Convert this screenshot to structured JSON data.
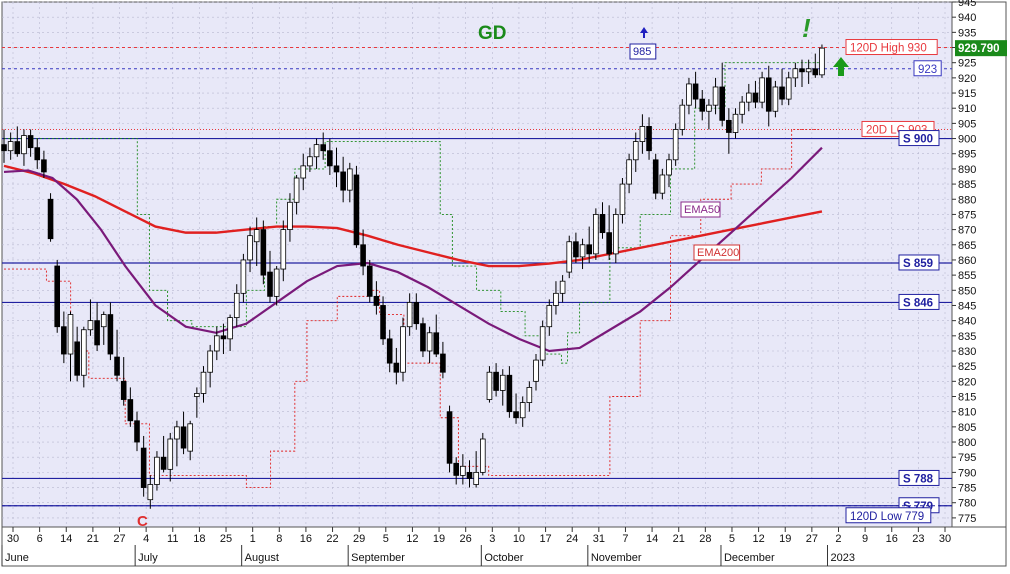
{
  "chart_data": {
    "type": "candlestick",
    "y_axis": {
      "min": 772,
      "max": 945,
      "tick_labels": [
        "945",
        "940",
        "935",
        "930",
        "925",
        "920",
        "915",
        "910",
        "905",
        "900",
        "895",
        "890",
        "885",
        "880",
        "875",
        "870",
        "865",
        "860",
        "855",
        "850",
        "845",
        "840",
        "835",
        "830",
        "825",
        "820",
        "815",
        "810",
        "805",
        "800",
        "795",
        "790",
        "785",
        "780",
        "775"
      ],
      "position": "right",
      "last_price": "929.790"
    },
    "x_axis": {
      "day_labels": [
        "30",
        "6",
        "14",
        "21",
        "27",
        "4",
        "11",
        "18",
        "25",
        "1",
        "8",
        "16",
        "22",
        "29",
        "5",
        "12",
        "19",
        "26",
        "3",
        "10",
        "17",
        "24",
        "31",
        "7",
        "14",
        "21",
        "28",
        "5",
        "12",
        "19",
        "27",
        "2",
        "9",
        "16",
        "23",
        "30"
      ],
      "month_labels": [
        "June",
        "July",
        "August",
        "September",
        "October",
        "November",
        "December",
        "2023"
      ]
    },
    "grid": true,
    "candles": [
      [
        898,
        903,
        892,
        896
      ],
      [
        896,
        902,
        893,
        899
      ],
      [
        899,
        904,
        894,
        895
      ],
      [
        895,
        903,
        891,
        901
      ],
      [
        901,
        903,
        894,
        897
      ],
      [
        897,
        900,
        890,
        893
      ],
      [
        893,
        896,
        887,
        889
      ],
      [
        880,
        882,
        866,
        867
      ],
      [
        858,
        860,
        836,
        838
      ],
      [
        838,
        843,
        826,
        829
      ],
      [
        829,
        843,
        820,
        842
      ],
      [
        833,
        838,
        820,
        822
      ],
      [
        822,
        838,
        818,
        837
      ],
      [
        837,
        847,
        835,
        840
      ],
      [
        840,
        846,
        830,
        832
      ],
      [
        838,
        843,
        832,
        842
      ],
      [
        842,
        846,
        827,
        829
      ],
      [
        828,
        837,
        820,
        822
      ],
      [
        820,
        828,
        812,
        814
      ],
      [
        814,
        818,
        805,
        807
      ],
      [
        807,
        810,
        797,
        800
      ],
      [
        798,
        802,
        782,
        785
      ],
      [
        781,
        789,
        778,
        786
      ],
      [
        786,
        797,
        784,
        795
      ],
      [
        795,
        802,
        790,
        791
      ],
      [
        791,
        803,
        787,
        801
      ],
      [
        801,
        807,
        792,
        805
      ],
      [
        805,
        810,
        796,
        798
      ],
      [
        797,
        807,
        794,
        806
      ],
      [
        815,
        818,
        808,
        816
      ],
      [
        816,
        825,
        813,
        823
      ],
      [
        823,
        832,
        818,
        830
      ],
      [
        830,
        838,
        827,
        835
      ],
      [
        835,
        839,
        829,
        834
      ],
      [
        834,
        842,
        830,
        841
      ],
      [
        841,
        852,
        838,
        849
      ],
      [
        849,
        862,
        846,
        860
      ],
      [
        860,
        871,
        856,
        868
      ],
      [
        866,
        874,
        858,
        870
      ],
      [
        870,
        873,
        852,
        855
      ],
      [
        856,
        863,
        846,
        848
      ],
      [
        848,
        858,
        845,
        857
      ],
      [
        857,
        873,
        853,
        870
      ],
      [
        870,
        882,
        866,
        879
      ],
      [
        879,
        888,
        875,
        887
      ],
      [
        887,
        895,
        883,
        891
      ],
      [
        891,
        897,
        889,
        894
      ],
      [
        894,
        900,
        890,
        898
      ],
      [
        898,
        902,
        893,
        896
      ],
      [
        896,
        900,
        888,
        891
      ],
      [
        891,
        897,
        884,
        889
      ],
      [
        889,
        894,
        879,
        883
      ],
      [
        883,
        892,
        879,
        890
      ],
      [
        888,
        891,
        864,
        865
      ],
      [
        865,
        870,
        855,
        858
      ],
      [
        858,
        860,
        846,
        848
      ],
      [
        848,
        853,
        842,
        845
      ],
      [
        845,
        848,
        832,
        834
      ],
      [
        834,
        837,
        823,
        826
      ],
      [
        826,
        831,
        819,
        823
      ],
      [
        823,
        841,
        820,
        838
      ],
      [
        838,
        849,
        835,
        846
      ],
      [
        846,
        849,
        837,
        839
      ],
      [
        839,
        841,
        828,
        830
      ],
      [
        830,
        838,
        826,
        836
      ],
      [
        836,
        842,
        828,
        829
      ],
      [
        829,
        833,
        821,
        823
      ],
      [
        810,
        812,
        790,
        793
      ],
      [
        793,
        795,
        786,
        789
      ],
      [
        789,
        796,
        786,
        792
      ],
      [
        790,
        794,
        785,
        788
      ],
      [
        786,
        797,
        785,
        790
      ],
      [
        790,
        803,
        789,
        801
      ],
      [
        814,
        825,
        813,
        823
      ],
      [
        823,
        826,
        815,
        817
      ],
      [
        817,
        824,
        812,
        822
      ],
      [
        822,
        825,
        808,
        810
      ],
      [
        810,
        816,
        806,
        808
      ],
      [
        808,
        815,
        805,
        813
      ],
      [
        813,
        820,
        810,
        818
      ],
      [
        820,
        829,
        817,
        827
      ],
      [
        827,
        840,
        825,
        838
      ],
      [
        838,
        847,
        835,
        845
      ],
      [
        845,
        853,
        842,
        849
      ],
      [
        849,
        855,
        846,
        853
      ],
      [
        856,
        868,
        854,
        866
      ],
      [
        866,
        869,
        859,
        861
      ],
      [
        861,
        867,
        857,
        865
      ],
      [
        865,
        871,
        859,
        862
      ],
      [
        862,
        877,
        860,
        875
      ],
      [
        875,
        879,
        867,
        869
      ],
      [
        869,
        878,
        860,
        862
      ],
      [
        862,
        877,
        859,
        875
      ],
      [
        875,
        887,
        872,
        885
      ],
      [
        885,
        895,
        882,
        893
      ],
      [
        893,
        902,
        889,
        899
      ],
      [
        899,
        908,
        895,
        904
      ],
      [
        904,
        907,
        893,
        896
      ],
      [
        893,
        895,
        880,
        882
      ],
      [
        882,
        890,
        880,
        888
      ],
      [
        888,
        895,
        884,
        893
      ],
      [
        893,
        905,
        891,
        903
      ],
      [
        903,
        913,
        901,
        911
      ],
      [
        911,
        920,
        908,
        918
      ],
      [
        918,
        922,
        910,
        913
      ],
      [
        913,
        916,
        906,
        909
      ],
      [
        909,
        913,
        903,
        911
      ],
      [
        911,
        920,
        908,
        917
      ],
      [
        917,
        925,
        904,
        906
      ],
      [
        906,
        910,
        895,
        902
      ],
      [
        902,
        910,
        900,
        908
      ],
      [
        908,
        914,
        905,
        912
      ],
      [
        912,
        918,
        909,
        915
      ],
      [
        915,
        919,
        910,
        912
      ],
      [
        912,
        922,
        910,
        920
      ],
      [
        920,
        924,
        904,
        909
      ],
      [
        909,
        919,
        907,
        917
      ],
      [
        917,
        923,
        911,
        913
      ],
      [
        913,
        922,
        911,
        920
      ],
      [
        920,
        925,
        917,
        923
      ],
      [
        923,
        926,
        917,
        922
      ],
      [
        922,
        926,
        918,
        923
      ],
      [
        923,
        928,
        920,
        921
      ],
      [
        921,
        931,
        920,
        929.79
      ]
    ],
    "series": [
      {
        "label": "EMA200",
        "points": [
          [
            0,
            891
          ],
          [
            10,
            888.5
          ],
          [
            20,
            885
          ],
          [
            30,
            881
          ],
          [
            40,
            876
          ],
          [
            50,
            871
          ],
          [
            60,
            869
          ],
          [
            70,
            869
          ],
          [
            80,
            870
          ],
          [
            90,
            871
          ],
          [
            100,
            871
          ],
          [
            110,
            870.5
          ],
          [
            120,
            868
          ],
          [
            130,
            865
          ],
          [
            140,
            862.5
          ],
          [
            150,
            860
          ],
          [
            160,
            858
          ],
          [
            170,
            858
          ],
          [
            180,
            858.8
          ],
          [
            190,
            860
          ],
          [
            200,
            862
          ],
          [
            210,
            864
          ],
          [
            220,
            866
          ],
          [
            230,
            868
          ],
          [
            240,
            870
          ],
          [
            250,
            872
          ],
          [
            260,
            874
          ],
          [
            270,
            876
          ]
        ]
      },
      {
        "label": "EMA50",
        "points": [
          [
            0,
            889
          ],
          [
            8,
            889.5
          ],
          [
            16,
            887
          ],
          [
            24,
            880
          ],
          [
            32,
            870
          ],
          [
            40,
            858
          ],
          [
            50,
            845
          ],
          [
            60,
            838
          ],
          [
            70,
            836
          ],
          [
            80,
            839
          ],
          [
            90,
            846
          ],
          [
            100,
            853
          ],
          [
            110,
            858
          ],
          [
            120,
            859
          ],
          [
            130,
            856
          ],
          [
            140,
            851
          ],
          [
            150,
            845
          ],
          [
            160,
            839
          ],
          [
            170,
            834
          ],
          [
            180,
            830
          ],
          [
            190,
            831
          ],
          [
            200,
            837
          ],
          [
            210,
            843
          ],
          [
            220,
            851
          ],
          [
            230,
            860
          ],
          [
            240,
            869
          ],
          [
            250,
            878
          ],
          [
            260,
            887
          ],
          [
            270,
            897
          ]
        ]
      },
      {
        "label": "20D High",
        "points": [
          [
            0,
            900
          ],
          [
            42,
            900
          ],
          [
            44,
            875
          ],
          [
            48,
            850
          ],
          [
            54,
            840
          ],
          [
            62,
            838
          ],
          [
            70,
            838
          ],
          [
            80,
            850
          ],
          [
            86,
            871
          ],
          [
            90,
            880
          ],
          [
            96,
            890
          ],
          [
            106,
            899
          ],
          [
            130,
            899
          ],
          [
            140,
            899
          ],
          [
            144,
            875
          ],
          [
            148,
            858
          ],
          [
            156,
            850
          ],
          [
            164,
            843
          ],
          [
            172,
            835
          ],
          [
            178,
            829
          ],
          [
            184,
            826
          ],
          [
            186,
            836
          ],
          [
            190,
            846
          ],
          [
            200,
            864
          ],
          [
            210,
            875
          ],
          [
            220,
            890
          ],
          [
            228,
            910
          ],
          [
            238,
            925
          ],
          [
            260,
            925
          ],
          [
            270,
            925
          ]
        ]
      },
      {
        "label": "20D LC",
        "points": [
          [
            0,
            857
          ],
          [
            14,
            853
          ],
          [
            22,
            830
          ],
          [
            28,
            821
          ],
          [
            40,
            806
          ],
          [
            48,
            789
          ],
          [
            60,
            789
          ],
          [
            80,
            785
          ],
          [
            88,
            797
          ],
          [
            96,
            820
          ],
          [
            100,
            840
          ],
          [
            110,
            848
          ],
          [
            120,
            850
          ],
          [
            124,
            842
          ],
          [
            132,
            826
          ],
          [
            144,
            808
          ],
          [
            150,
            792
          ],
          [
            160,
            789
          ],
          [
            190,
            789
          ],
          [
            200,
            815
          ],
          [
            210,
            840
          ],
          [
            220,
            868
          ],
          [
            230,
            880
          ],
          [
            240,
            885
          ],
          [
            250,
            890
          ],
          [
            260,
            903
          ],
          [
            270,
            903
          ]
        ]
      }
    ],
    "horizontal_levels": [
      {
        "value": 930,
        "label": "120D High 930",
        "color": "#e8383d",
        "style": "dashed"
      },
      {
        "value": 923,
        "label": "923",
        "color": "#3838c0",
        "style": "dashed"
      },
      {
        "value": 903,
        "label": "20D LC 903",
        "color": "#e8383d",
        "style": "dotted"
      },
      {
        "value": 900,
        "label": "S 900",
        "color": "#2020a0",
        "style": "solid"
      },
      {
        "value": 859,
        "label": "S 859",
        "color": "#2020a0",
        "style": "solid"
      },
      {
        "value": 846,
        "label": "S 846",
        "color": "#2020a0",
        "style": "solid"
      },
      {
        "value": 788,
        "label": "S 788",
        "color": "#2020a0",
        "style": "solid"
      },
      {
        "value": 779,
        "label": "S 779",
        "color": "#2020a0",
        "style": "solid"
      },
      {
        "value": 779,
        "label": "120D Low 779",
        "color": "#2020a0",
        "style": "dashed"
      }
    ],
    "annotations": [
      {
        "text": "GD",
        "color": "#1a8a1a"
      },
      {
        "text": "985",
        "color": "#2020a0"
      },
      {
        "text": "!",
        "color": "#2a9a2a"
      },
      {
        "text": "C",
        "color": "#e03030"
      },
      {
        "text": "EMA50",
        "color": "#8a2a8a"
      },
      {
        "text": "EMA200",
        "color": "#d03030"
      }
    ],
    "colors": {
      "background": "#e8e8f8",
      "ema200": "#e02020",
      "ema50": "#7a1a7a",
      "high20": "#1a8a1a",
      "low20": "#e02020",
      "support": "#1a1a9a",
      "up_arrow": "#1a9a1a",
      "price_box": "#1a8a1a"
    }
  }
}
